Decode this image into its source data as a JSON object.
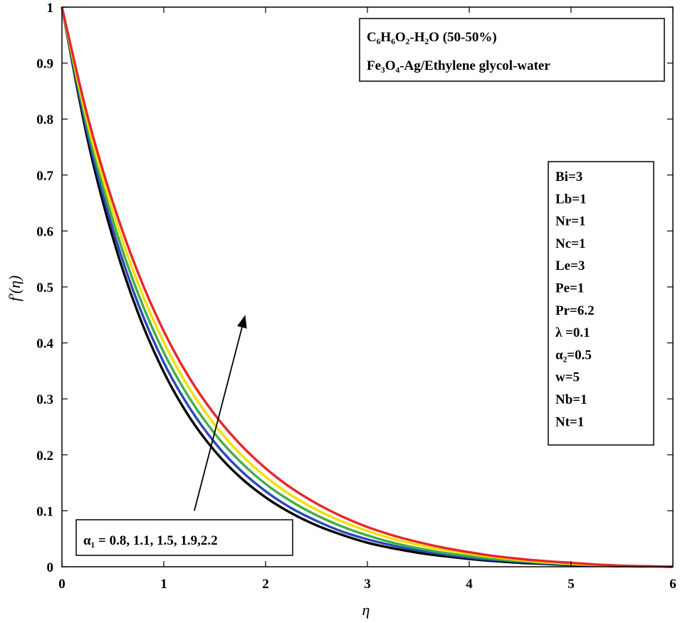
{
  "chart_data": {
    "type": "line",
    "xlabel": "η",
    "ylabel": "f′(η)",
    "xlim": [
      0,
      6
    ],
    "ylim": [
      0,
      1
    ],
    "x_ticks": [
      "0",
      "1",
      "2",
      "3",
      "4",
      "5",
      "6"
    ],
    "y_ticks": [
      "0",
      "0.1",
      "0.2",
      "0.3",
      "0.4",
      "0.5",
      "0.6",
      "0.7",
      "0.8",
      "0.9",
      "1"
    ],
    "grid": false,
    "x": [
      0,
      0.25,
      0.5,
      0.75,
      1,
      1.25,
      1.5,
      1.75,
      2,
      2.25,
      2.5,
      2.75,
      3,
      3.25,
      3.5,
      3.75,
      4,
      4.25,
      4.5,
      4.75,
      5,
      5.25,
      5.5,
      5.75,
      6
    ],
    "series": [
      {
        "color": "#000000",
        "values": [
          1,
          0.765,
          0.588,
          0.452,
          0.348,
          0.268,
          0.207,
          0.16,
          0.124,
          0.096,
          0.074,
          0.057,
          0.043,
          0.033,
          0.025,
          0.019,
          0.014,
          0.01,
          0.007,
          0.005,
          0.003,
          0.002,
          0.001,
          0.0005,
          0
        ]
      },
      {
        "color": "#2b48b8",
        "values": [
          1,
          0.775,
          0.603,
          0.469,
          0.365,
          0.285,
          0.222,
          0.173,
          0.135,
          0.105,
          0.082,
          0.063,
          0.049,
          0.038,
          0.029,
          0.022,
          0.016,
          0.012,
          0.009,
          0.006,
          0.004,
          0.002,
          0.001,
          0.0005,
          0
        ]
      },
      {
        "color": "#3fae49",
        "values": [
          1,
          0.785,
          0.619,
          0.487,
          0.383,
          0.302,
          0.238,
          0.188,
          0.148,
          0.117,
          0.092,
          0.072,
          0.056,
          0.043,
          0.033,
          0.025,
          0.019,
          0.014,
          0.01,
          0.007,
          0.005,
          0.003,
          0.0015,
          0.0006,
          0
        ]
      },
      {
        "color": "#f2e000",
        "values": [
          1,
          0.795,
          0.635,
          0.505,
          0.401,
          0.319,
          0.254,
          0.202,
          0.161,
          0.128,
          0.102,
          0.081,
          0.064,
          0.05,
          0.039,
          0.03,
          0.023,
          0.017,
          0.012,
          0.008,
          0.005,
          0.003,
          0.0015,
          0.0006,
          0
        ]
      },
      {
        "color": "#e8262a",
        "values": [
          1,
          0.806,
          0.651,
          0.524,
          0.421,
          0.338,
          0.272,
          0.219,
          0.176,
          0.141,
          0.113,
          0.09,
          0.071,
          0.056,
          0.044,
          0.034,
          0.026,
          0.019,
          0.014,
          0.01,
          0.007,
          0.004,
          0.002,
          0.001,
          0
        ]
      }
    ],
    "annotation": {
      "text": "α₁ = 0.8, 1.1, 1.5, 1.9,2.2",
      "arrow_from": [
        1.3,
        0.1
      ],
      "arrow_to": [
        1.8,
        0.45
      ]
    },
    "legend_box": {
      "placement": "top-right",
      "lines": [
        "C₆H₆O₂-H₂O (50-50%)",
        "Fe₃O₄-Ag/Ethylene glycol-water"
      ]
    },
    "params_box": {
      "placement": "right",
      "lines": [
        "Bi=3",
        "Lb=1",
        "Nr=1",
        "Nc=1",
        "Le=3",
        "Pe=1",
        "Pr=6.2",
        "λ =0.1",
        "α₂=0.5",
        "w=5",
        "Nb=1",
        "Nt=1"
      ]
    }
  }
}
